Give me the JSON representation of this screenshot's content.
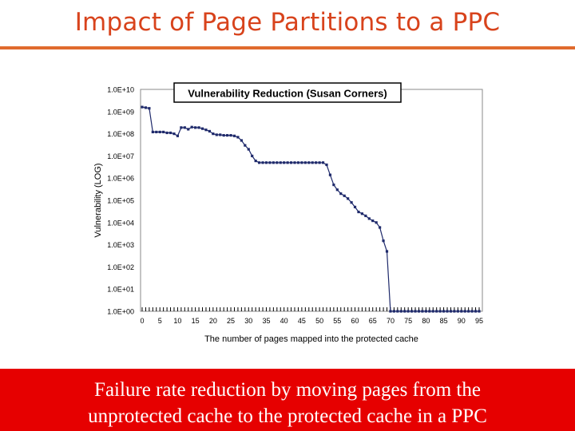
{
  "slide": {
    "title": "Impact of Page Partitions to a PPC",
    "footer_line1": "Failure rate reduction by moving pages from the",
    "footer_line2": "unprotected cache to the protected cache in a PPC"
  },
  "colors": {
    "title": "#d8431c",
    "rule": "#e06b2d",
    "footer_bg": "#e60000",
    "series": "#1f2a6b"
  },
  "chart_data": {
    "type": "line",
    "title": "Vulnerability Reduction (Susan Corners)",
    "xlabel": "The number of pages mapped into the protected cache",
    "ylabel": "Vulnerability (LOG)",
    "yscale": "log",
    "ylim": [
      1,
      10000000000
    ],
    "xlim": [
      0,
      95
    ],
    "grid": false,
    "legend": "none",
    "y_tick_labels": [
      "1.0E+00",
      "1.0E+01",
      "1.0E+02",
      "1.0E+03",
      "1.0E+04",
      "1.0E+05",
      "1.0E+06",
      "1.0E+07",
      "1.0E+08",
      "1.0E+09",
      "1.0E+10"
    ],
    "x_tick_labels": [
      "0",
      "5",
      "10",
      "15",
      "20",
      "25",
      "30",
      "35",
      "40",
      "45",
      "50",
      "55",
      "60",
      "65",
      "70",
      "75",
      "80",
      "85",
      "90",
      "95"
    ],
    "x": [
      0,
      1,
      2,
      3,
      4,
      5,
      6,
      7,
      8,
      9,
      10,
      11,
      12,
      13,
      14,
      15,
      16,
      17,
      18,
      19,
      20,
      21,
      22,
      23,
      24,
      25,
      26,
      27,
      28,
      29,
      30,
      31,
      32,
      33,
      34,
      35,
      36,
      37,
      38,
      39,
      40,
      41,
      42,
      43,
      44,
      45,
      46,
      47,
      48,
      49,
      50,
      51,
      52,
      53,
      54,
      55,
      56,
      57,
      58,
      59,
      60,
      61,
      62,
      63,
      64,
      65,
      66,
      67,
      68,
      69,
      70,
      71,
      72,
      73,
      74,
      75,
      76,
      77,
      78,
      79,
      80,
      81,
      82,
      83,
      84,
      85,
      86,
      87,
      88,
      89,
      90,
      91,
      92,
      93,
      94,
      95
    ],
    "values": [
      1600000000.0,
      1500000000.0,
      1400000000.0,
      120000000.0,
      120000000.0,
      120000000.0,
      120000000.0,
      110000000.0,
      110000000.0,
      100000000.0,
      80000000.0,
      190000000.0,
      190000000.0,
      160000000.0,
      200000000.0,
      190000000.0,
      190000000.0,
      170000000.0,
      150000000.0,
      130000000.0,
      100000000.0,
      90000000.0,
      90000000.0,
      85000000.0,
      85000000.0,
      85000000.0,
      80000000.0,
      70000000.0,
      50000000.0,
      30000000.0,
      20000000.0,
      10000000.0,
      6000000.0,
      5000000.0,
      5000000.0,
      5000000.0,
      5000000.0,
      5000000.0,
      5000000.0,
      5000000.0,
      5000000.0,
      5000000.0,
      5000000.0,
      5000000.0,
      5000000.0,
      5000000.0,
      5000000.0,
      5000000.0,
      5000000.0,
      5000000.0,
      5000000.0,
      5000000.0,
      4000000.0,
      1400000.0,
      500000.0,
      300000.0,
      200000.0,
      160000.0,
      120000.0,
      80000.0,
      50000.0,
      30000.0,
      25000.0,
      20000.0,
      15000.0,
      12000.0,
      10000.0,
      6000.0,
      1500.0,
      500,
      1,
      1,
      1,
      1,
      1,
      1,
      1,
      1,
      1,
      1,
      1,
      1,
      1,
      1,
      1,
      1,
      1,
      1,
      1,
      1,
      1,
      1,
      1,
      1,
      1,
      1
    ]
  }
}
